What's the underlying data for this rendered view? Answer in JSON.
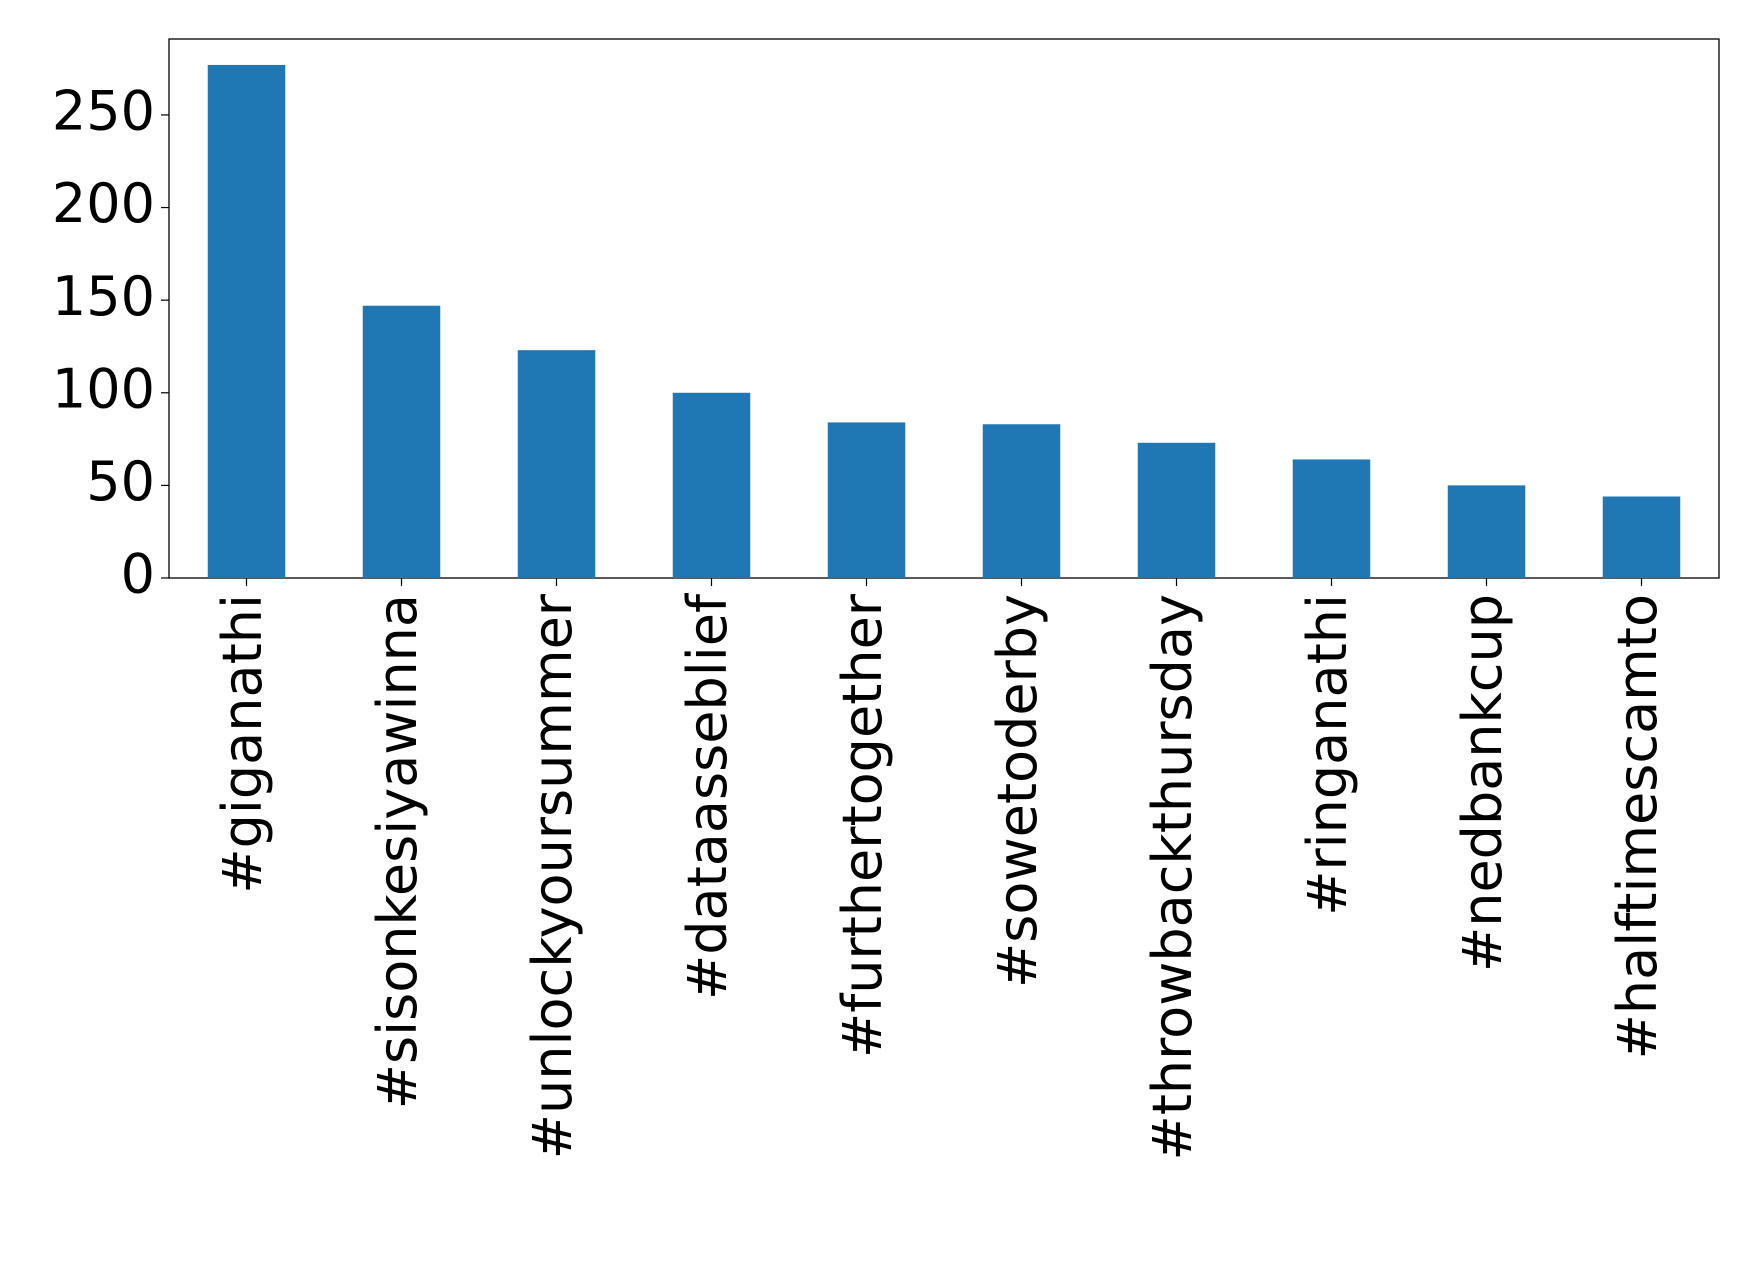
{
  "chart_data": {
    "type": "bar",
    "categories": [
      "#giganathi",
      "#sisonkesiyawinna",
      "#unlockyoursummer",
      "#dataasseblief",
      "#furthertogether",
      "#sowetoderby",
      "#throwbackthursday",
      "#ringanathi",
      "#nedbankcup",
      "#halftimescamto"
    ],
    "values": [
      277,
      147,
      123,
      100,
      84,
      83,
      73,
      64,
      50,
      44
    ],
    "color": "#1f77b4",
    "ylim": [
      0,
      291
    ],
    "yticks": [
      0,
      50,
      100,
      150,
      200,
      250
    ],
    "grid": false
  }
}
